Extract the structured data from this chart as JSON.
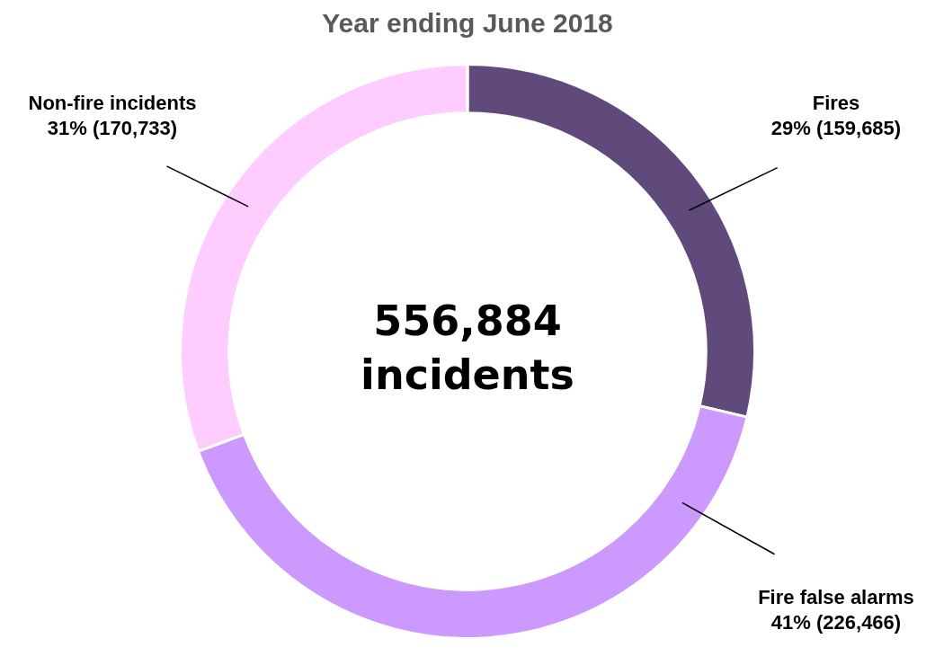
{
  "chart_data": {
    "type": "donut",
    "title": "Year ending June 2018",
    "categories": [
      "Fires",
      "Fire false alarms",
      "Non-fire incidents"
    ],
    "values": [
      159685,
      226466,
      170733
    ],
    "colors": [
      "#604a7b",
      "#cc99ff",
      "#ffccff"
    ],
    "value_labels": [
      "29% (159,685)",
      "41% (226,466)",
      "31% (170,733)"
    ],
    "annotations": [
      "556,884 incidents"
    ],
    "legend": false
  }
}
